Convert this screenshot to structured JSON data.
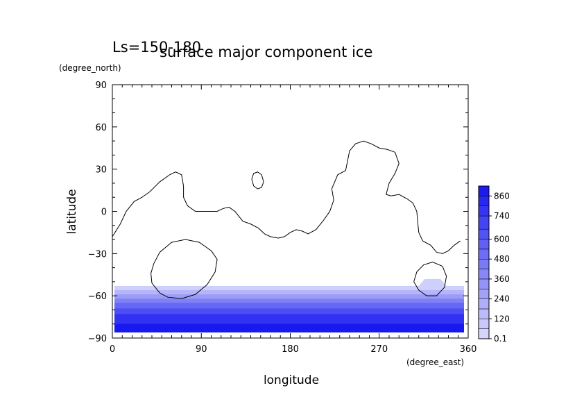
{
  "header": {
    "ls_label": "Ls=150-180",
    "title": "surface major component ice"
  },
  "chart_data": {
    "type": "heatmap",
    "title": "surface major component ice",
    "xlabel": "longitude",
    "ylabel": "latitude",
    "x_unit": "(degree_east)",
    "y_unit": "(degree_north)",
    "xlim": [
      0,
      360
    ],
    "ylim": [
      -90,
      90
    ],
    "x_ticks": [
      0,
      90,
      180,
      270,
      360
    ],
    "x_tick_labels": [
      "0",
      "90",
      "180",
      "270",
      "360"
    ],
    "y_ticks": [
      90,
      60,
      30,
      0,
      -30,
      -60,
      -90
    ],
    "y_tick_labels": [
      "90",
      "60",
      "30",
      "0",
      "−30",
      "−60",
      "−90"
    ],
    "colorbar": {
      "levels": [
        0.1,
        60,
        120,
        180,
        240,
        300,
        360,
        420,
        480,
        540,
        600,
        660,
        740,
        800,
        860,
        920
      ],
      "tick_values": [
        0.1,
        120,
        240,
        360,
        480,
        600,
        740,
        860
      ],
      "tick_labels": [
        "0.1",
        "120",
        "240",
        "360",
        "480",
        "600",
        "740",
        "860"
      ],
      "color_low": "#dcdcfc",
      "color_high": "#1414f0"
    },
    "bands": [
      {
        "lat_top": -53,
        "value": 60
      },
      {
        "lat_top": -56,
        "value": 180
      },
      {
        "lat_top": -59,
        "value": 300
      },
      {
        "lat_top": -62,
        "value": 420
      },
      {
        "lat_top": -65,
        "value": 540
      },
      {
        "lat_top": -69,
        "value": 660
      },
      {
        "lat_top": -73,
        "value": 780
      },
      {
        "lat_top": -80,
        "value": 900
      }
    ],
    "cap_patch": {
      "value": 60,
      "points": [
        [
          310,
          -53
        ],
        [
          316,
          -48
        ],
        [
          332,
          -48
        ],
        [
          338,
          -53
        ]
      ]
    },
    "contours": [
      {
        "name": "continent",
        "points": [
          [
            0,
            -18
          ],
          [
            8,
            -9
          ],
          [
            14,
            0
          ],
          [
            22,
            7
          ],
          [
            30,
            10
          ],
          [
            38,
            14
          ],
          [
            48,
            21
          ],
          [
            58,
            26
          ],
          [
            64,
            28
          ],
          [
            70,
            26
          ],
          [
            72,
            18
          ],
          [
            72,
            10
          ],
          [
            76,
            4
          ],
          [
            84,
            0
          ],
          [
            96,
            0
          ],
          [
            106,
            0
          ],
          [
            112,
            2
          ],
          [
            118,
            3
          ],
          [
            124,
            0
          ],
          [
            132,
            -7
          ],
          [
            140,
            -9
          ],
          [
            148,
            -12
          ],
          [
            154,
            -16
          ],
          [
            160,
            -18
          ],
          [
            168,
            -19
          ],
          [
            174,
            -18
          ],
          [
            180,
            -15
          ],
          [
            186,
            -13
          ],
          [
            192,
            -14
          ],
          [
            198,
            -16
          ],
          [
            206,
            -13
          ],
          [
            214,
            -6
          ],
          [
            220,
            0
          ],
          [
            224,
            8
          ],
          [
            222,
            16
          ],
          [
            228,
            26
          ],
          [
            236,
            29
          ],
          [
            238,
            36
          ],
          [
            240,
            43
          ],
          [
            246,
            48
          ],
          [
            254,
            50
          ],
          [
            262,
            48
          ],
          [
            270,
            45
          ],
          [
            278,
            44
          ],
          [
            286,
            42
          ],
          [
            290,
            34
          ],
          [
            286,
            27
          ],
          [
            280,
            20
          ],
          [
            277,
            12
          ],
          [
            282,
            11
          ],
          [
            290,
            12
          ],
          [
            298,
            9
          ],
          [
            304,
            6
          ],
          [
            308,
            0
          ],
          [
            309,
            -8
          ],
          [
            310,
            -15
          ],
          [
            314,
            -21
          ],
          [
            322,
            -24
          ],
          [
            328,
            -29
          ],
          [
            334,
            -30
          ],
          [
            340,
            -28
          ],
          [
            346,
            -24
          ],
          [
            352,
            -21
          ]
        ]
      },
      {
        "name": "island",
        "points": [
          [
            141,
            23
          ],
          [
            143,
            27
          ],
          [
            147,
            28
          ],
          [
            151,
            26
          ],
          [
            153,
            21
          ],
          [
            151,
            17
          ],
          [
            147,
            16
          ],
          [
            143,
            18
          ],
          [
            141,
            23
          ]
        ]
      },
      {
        "name": "basin-west",
        "points": [
          [
            40,
            -51
          ],
          [
            48,
            -58
          ],
          [
            56,
            -61
          ],
          [
            70,
            -62
          ],
          [
            84,
            -59
          ],
          [
            96,
            -52
          ],
          [
            104,
            -43
          ],
          [
            106,
            -34
          ],
          [
            100,
            -28
          ],
          [
            88,
            -22
          ],
          [
            74,
            -20
          ],
          [
            60,
            -22
          ],
          [
            48,
            -29
          ],
          [
            42,
            -37
          ],
          [
            39,
            -44
          ],
          [
            40,
            -51
          ]
        ]
      },
      {
        "name": "basin-east",
        "points": [
          [
            305,
            -50
          ],
          [
            310,
            -56
          ],
          [
            318,
            -60
          ],
          [
            328,
            -60
          ],
          [
            336,
            -54
          ],
          [
            338,
            -46
          ],
          [
            334,
            -39
          ],
          [
            324,
            -36
          ],
          [
            315,
            -38
          ],
          [
            308,
            -43
          ],
          [
            305,
            -50
          ]
        ]
      }
    ]
  }
}
